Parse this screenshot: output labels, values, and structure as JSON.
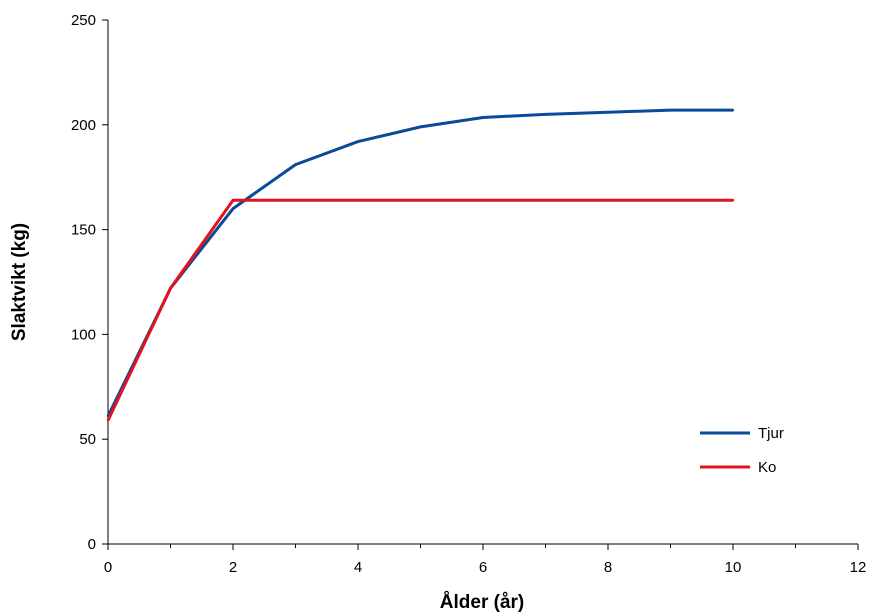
{
  "chart_data": {
    "type": "line",
    "title": "",
    "xlabel": "Ålder (år)",
    "ylabel": "Slaktvikt (kg)",
    "xlim": [
      0,
      12
    ],
    "ylim": [
      0,
      250
    ],
    "xticks": [
      "0",
      "2",
      "4",
      "6",
      "8",
      "10",
      "12"
    ],
    "yticks": [
      "0",
      "50",
      "100",
      "150",
      "200",
      "250"
    ],
    "grid": false,
    "legend_position": "bottom-right",
    "x": [
      0,
      1,
      2,
      3,
      4,
      5,
      6,
      7,
      8,
      9,
      10
    ],
    "series": [
      {
        "name": "Tjur",
        "color": "#0a4a9a",
        "values": [
          61,
          122,
          160,
          181,
          192,
          199,
          203.5,
          205,
          206,
          207,
          207
        ]
      },
      {
        "name": "Ko",
        "color": "#e0141e",
        "values": [
          59,
          122,
          164,
          164,
          164,
          164,
          164,
          164,
          164,
          164,
          164
        ]
      }
    ]
  }
}
